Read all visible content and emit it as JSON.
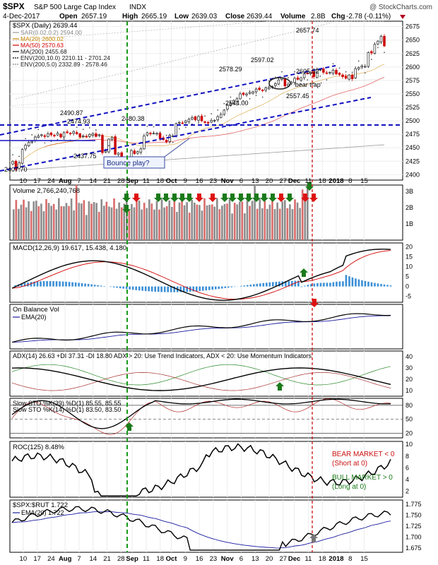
{
  "header": {
    "symbol": "$SPX",
    "name": "S&P 500 Large Cap Index",
    "exchange": "INDX",
    "watermark": "@ StockCharts.com",
    "date": "4-Dec-2017",
    "open_label": "Open",
    "open": "2657.19",
    "high_label": "High",
    "high": "2665.19",
    "low_label": "Low",
    "low": "2639.03",
    "close_label": "Close",
    "close": "2639.44",
    "volume_label": "Volume",
    "volume": "2.8B",
    "chg_label": "Chg",
    "chg": "-2.78 (-0.11%)"
  },
  "x_axis": {
    "ticks": [
      "10",
      "17",
      "24",
      "Aug",
      "7",
      "14",
      "21",
      "28",
      "Sep",
      "11",
      "18",
      "Oct",
      "9",
      "16",
      "23",
      "Nov",
      "6",
      "13",
      "20",
      "27",
      "Dec",
      "11",
      "18",
      "2018",
      "8",
      "15"
    ]
  },
  "colors": {
    "up": "#222222",
    "down": "#cc0000",
    "ma20": "#cc8800",
    "ma50": "#d40000",
    "ma200": "#000000",
    "trend_blue": "#1010c0",
    "green_arrow": "#1a7a1a",
    "red_arrow": "#dd1111",
    "gray_arrow": "#777777",
    "vol_bar": "#8c8c8c",
    "vol_bar_down": "#d96b6b",
    "hist": "#3a8fd6",
    "ema": "#1a1aa0"
  },
  "chart_data": [
    {
      "panel": "price",
      "type": "line",
      "title": "$SPX (Daily) 2639.44",
      "legend": [
        {
          "label": "SAR(0.02,0.2) 2594.00"
        },
        {
          "label": "MA(20) 2600.02"
        },
        {
          "label": "MA(50) 2570.63"
        },
        {
          "label": "MA(200) 2455.68"
        },
        {
          "label": "ENV(200,10.0) 2210.11 - 2701.24"
        },
        {
          "label": "ENV(200,5.0) 2332.89 - 2578.46"
        }
      ],
      "ylim": [
        2390,
        2685
      ],
      "yticks": [
        2400,
        2425,
        2450,
        2475,
        2500,
        2525,
        2550,
        2575,
        2600,
        2625,
        2650,
        2675
      ],
      "close": [
        2425,
        2410,
        2422,
        2447,
        2455,
        2460,
        2462,
        2470,
        2472,
        2474,
        2471,
        2476,
        2474,
        2473,
        2477,
        2470,
        2478,
        2478,
        2476,
        2480,
        2476,
        2470,
        2472,
        2470,
        2475,
        2476,
        2471,
        2474,
        2441,
        2444,
        2466,
        2469,
        2438,
        2440,
        2428,
        2424,
        2429,
        2445,
        2439,
        2443,
        2448,
        2472,
        2478,
        2476,
        2477,
        2477,
        2467,
        2465,
        2461,
        2473,
        2472,
        2495,
        2497,
        2496,
        2500,
        2503,
        2506,
        2502,
        2508,
        2500,
        2497,
        2496,
        2501,
        2501,
        2508,
        2512,
        2520,
        2529,
        2532,
        2538,
        2541,
        2550,
        2549,
        2550,
        2553,
        2554,
        2559,
        2558,
        2556,
        2561,
        2562,
        2564,
        2569,
        2576,
        2579,
        2565,
        2568,
        2572,
        2579,
        2577,
        2580,
        2587,
        2588,
        2590,
        2582,
        2595,
        2595,
        2590,
        2588,
        2590,
        2594,
        2587,
        2586,
        2582,
        2579,
        2585,
        2578,
        2597,
        2599,
        2602,
        2601,
        2627,
        2626,
        2642,
        2648,
        2657,
        2639
      ],
      "annotations": [
        "2407.70",
        "2490.87",
        "2474.93",
        "2437.75",
        "2480.38",
        "2578.29",
        "2597.02",
        "2657.74",
        "2605.52",
        "2557.45",
        "2544.00",
        "'bear trap'",
        "Bounce play?"
      ]
    },
    {
      "panel": "volume",
      "type": "bar",
      "title": "Volume 2,766,240,768",
      "yticks_label": [
        "1B",
        "2B",
        "3B"
      ]
    },
    {
      "panel": "macd",
      "type": "line",
      "title": "MACD(12,26,9) 19.617, 15.438, 4.180",
      "yticks": [
        -5,
        0,
        5,
        10,
        15,
        20
      ],
      "ylim": [
        -8,
        22
      ]
    },
    {
      "panel": "obv",
      "type": "line",
      "title": "On Balance Vol",
      "legend": [
        {
          "label": "EMA(20)"
        }
      ]
    },
    {
      "panel": "adx",
      "type": "line",
      "title": "ADX(14) 26.63 +DI 37.31 -DI 18.80 ADX > 20: Use Trend Indicators, ADX < 20: Use Momentum Indicators",
      "yticks": [
        10,
        20,
        30,
        40
      ],
      "ylim": [
        5,
        45
      ]
    },
    {
      "panel": "sto",
      "type": "line",
      "title": "Slow STO %K(39) %D(1) 85.55, 85.55",
      "subtitle": "Slow STO %K(14) %D(1) 83.50, 83.50",
      "yticks": [
        20,
        50,
        80
      ],
      "ylim": [
        10,
        95
      ]
    },
    {
      "panel": "roc",
      "type": "line",
      "title": "ROC(125) 8.48%",
      "yticks": [
        2,
        4,
        6,
        8,
        10
      ],
      "ylim": [
        1,
        10.5
      ],
      "notes": [
        "BEAR MARKET < 0",
        "(Short at 0)",
        "BULL MARKET > 0",
        "(Long at 0)"
      ]
    },
    {
      "panel": "ratio",
      "type": "line",
      "title": "$SPX:$RUT 1.722",
      "legend": [
        {
          "label": "EMA(20) 1.722"
        }
      ],
      "yticks": [
        1.675,
        1.7,
        1.725,
        1.75,
        1.775
      ],
      "ylim": [
        1.665,
        1.785
      ]
    }
  ]
}
